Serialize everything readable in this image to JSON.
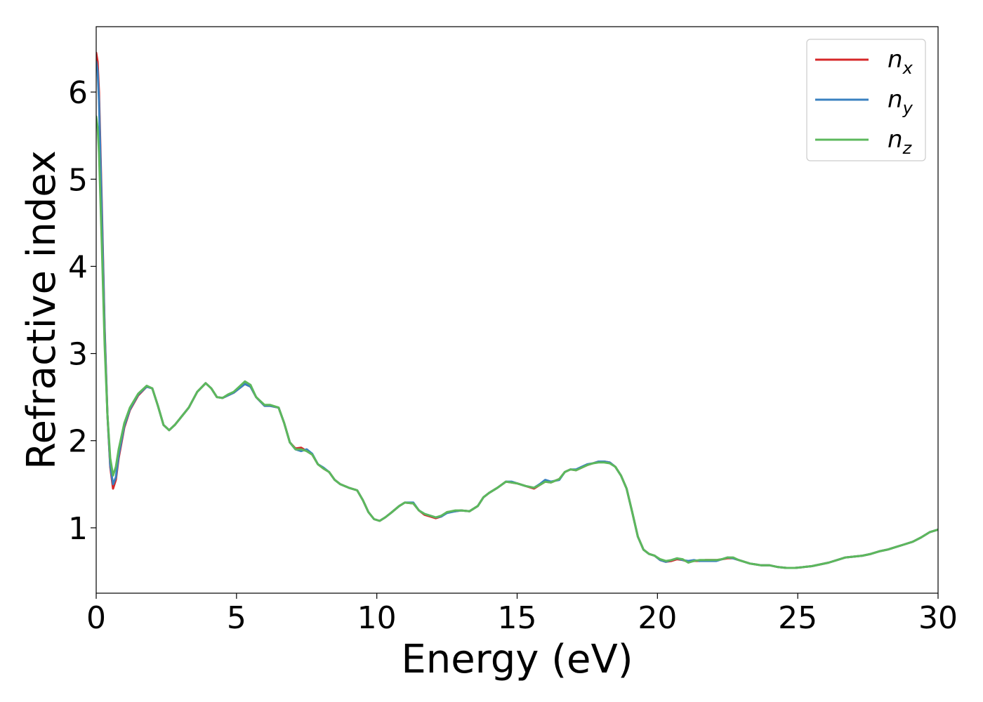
{
  "chart_data": {
    "type": "line",
    "xlabel": "Energy (eV)",
    "ylabel": "Refractive index",
    "xlim": [
      0,
      30
    ],
    "ylim": [
      0.25,
      6.75
    ],
    "xticks": [
      0,
      5,
      10,
      15,
      20,
      25,
      30
    ],
    "yticks": [
      1,
      2,
      3,
      4,
      5,
      6
    ],
    "grid": false,
    "legend_position": "top-right",
    "series": [
      {
        "name": "n",
        "subscript": "x",
        "color": "#d62728",
        "x": [
          0,
          0.05,
          0.1,
          0.2,
          0.3,
          0.4,
          0.5,
          0.6,
          0.7,
          0.8,
          1.0,
          1.2,
          1.5,
          1.8,
          2.0,
          2.2,
          2.4,
          2.6,
          2.8,
          3.0,
          3.3,
          3.6,
          3.9,
          4.1,
          4.3,
          4.5,
          4.7,
          4.9,
          5.1,
          5.3,
          5.5,
          5.7,
          6.0,
          6.2,
          6.5,
          6.7,
          6.9,
          7.1,
          7.3,
          7.5,
          7.7,
          7.9,
          8.1,
          8.3,
          8.5,
          8.7,
          9.0,
          9.3,
          9.5,
          9.7,
          9.9,
          10.1,
          10.3,
          10.5,
          10.8,
          11.0,
          11.3,
          11.5,
          11.7,
          11.9,
          12.1,
          12.3,
          12.5,
          12.8,
          13.0,
          13.3,
          13.6,
          13.8,
          14.0,
          14.3,
          14.6,
          14.8,
          15.0,
          15.3,
          15.6,
          15.8,
          16.0,
          16.2,
          16.5,
          16.7,
          16.9,
          17.1,
          17.3,
          17.5,
          17.7,
          17.9,
          18.1,
          18.3,
          18.5,
          18.7,
          18.9,
          19.1,
          19.3,
          19.5,
          19.7,
          19.9,
          20.1,
          20.3,
          20.5,
          20.7,
          20.9,
          21.1,
          21.3,
          21.5,
          21.7,
          21.9,
          22.1,
          22.3,
          22.5,
          22.7,
          22.9,
          23.1,
          23.3,
          23.5,
          23.7,
          24.0,
          24.3,
          24.6,
          24.9,
          25.2,
          25.5,
          25.8,
          26.1,
          26.4,
          26.7,
          27.0,
          27.3,
          27.6,
          27.9,
          28.2,
          28.5,
          28.8,
          29.1,
          29.4,
          29.7,
          30.0
        ],
        "y": [
          6.45,
          6.35,
          6.0,
          4.7,
          3.3,
          2.3,
          1.7,
          1.45,
          1.55,
          1.8,
          2.15,
          2.35,
          2.52,
          2.62,
          2.6,
          2.4,
          2.18,
          2.12,
          2.18,
          2.26,
          2.38,
          2.56,
          2.66,
          2.6,
          2.5,
          2.49,
          2.52,
          2.55,
          2.6,
          2.65,
          2.62,
          2.5,
          2.4,
          2.4,
          2.38,
          2.2,
          1.98,
          1.91,
          1.92,
          1.88,
          1.84,
          1.73,
          1.68,
          1.64,
          1.55,
          1.5,
          1.46,
          1.43,
          1.32,
          1.18,
          1.1,
          1.08,
          1.12,
          1.17,
          1.25,
          1.29,
          1.28,
          1.2,
          1.15,
          1.13,
          1.11,
          1.13,
          1.18,
          1.19,
          1.2,
          1.19,
          1.25,
          1.35,
          1.4,
          1.46,
          1.53,
          1.52,
          1.51,
          1.48,
          1.45,
          1.49,
          1.53,
          1.52,
          1.56,
          1.64,
          1.67,
          1.66,
          1.69,
          1.72,
          1.74,
          1.76,
          1.76,
          1.75,
          1.7,
          1.6,
          1.45,
          1.18,
          0.9,
          0.75,
          0.7,
          0.68,
          0.63,
          0.61,
          0.62,
          0.64,
          0.63,
          0.61,
          0.62,
          0.62,
          0.63,
          0.63,
          0.63,
          0.64,
          0.65,
          0.65,
          0.63,
          0.61,
          0.59,
          0.58,
          0.57,
          0.57,
          0.55,
          0.54,
          0.54,
          0.55,
          0.56,
          0.58,
          0.6,
          0.63,
          0.66,
          0.67,
          0.68,
          0.7,
          0.73,
          0.75,
          0.78,
          0.81,
          0.84,
          0.89,
          0.95,
          0.98
        ]
      },
      {
        "name": "n",
        "subscript": "y",
        "color": "#3a81c0",
        "x": [
          0,
          0.05,
          0.1,
          0.2,
          0.3,
          0.4,
          0.5,
          0.6,
          0.7,
          0.8,
          1.0,
          1.2,
          1.5,
          1.8,
          2.0,
          2.2,
          2.4,
          2.6,
          2.8,
          3.0,
          3.3,
          3.6,
          3.9,
          4.1,
          4.3,
          4.5,
          4.7,
          4.9,
          5.1,
          5.3,
          5.5,
          5.7,
          6.0,
          6.2,
          6.5,
          6.7,
          6.9,
          7.1,
          7.3,
          7.5,
          7.7,
          7.9,
          8.1,
          8.3,
          8.5,
          8.7,
          9.0,
          9.3,
          9.5,
          9.7,
          9.9,
          10.1,
          10.3,
          10.5,
          10.8,
          11.0,
          11.3,
          11.5,
          11.7,
          11.9,
          12.1,
          12.3,
          12.5,
          12.8,
          13.0,
          13.3,
          13.6,
          13.8,
          14.0,
          14.3,
          14.6,
          14.8,
          15.0,
          15.3,
          15.6,
          15.8,
          16.0,
          16.2,
          16.5,
          16.7,
          16.9,
          17.1,
          17.3,
          17.5,
          17.7,
          17.9,
          18.1,
          18.3,
          18.5,
          18.7,
          18.9,
          19.1,
          19.3,
          19.5,
          19.7,
          19.9,
          20.1,
          20.3,
          20.5,
          20.7,
          20.9,
          21.1,
          21.3,
          21.5,
          21.7,
          21.9,
          22.1,
          22.3,
          22.5,
          22.7,
          22.9,
          23.1,
          23.3,
          23.5,
          23.7,
          24.0,
          24.3,
          24.6,
          24.9,
          25.2,
          25.5,
          25.8,
          26.1,
          26.4,
          26.7,
          27.0,
          27.3,
          27.6,
          27.9,
          28.2,
          28.5,
          28.8,
          29.1,
          29.4,
          29.7,
          30.0
        ],
        "y": [
          6.35,
          6.25,
          5.9,
          4.6,
          3.25,
          2.3,
          1.72,
          1.5,
          1.58,
          1.83,
          2.17,
          2.36,
          2.53,
          2.62,
          2.6,
          2.4,
          2.18,
          2.12,
          2.18,
          2.26,
          2.38,
          2.56,
          2.66,
          2.6,
          2.5,
          2.49,
          2.52,
          2.55,
          2.6,
          2.65,
          2.62,
          2.5,
          2.4,
          2.4,
          2.38,
          2.2,
          1.98,
          1.9,
          1.88,
          1.9,
          1.85,
          1.73,
          1.69,
          1.64,
          1.55,
          1.5,
          1.46,
          1.43,
          1.32,
          1.18,
          1.1,
          1.08,
          1.12,
          1.17,
          1.25,
          1.29,
          1.29,
          1.2,
          1.16,
          1.14,
          1.12,
          1.13,
          1.17,
          1.19,
          1.2,
          1.19,
          1.25,
          1.35,
          1.4,
          1.46,
          1.53,
          1.53,
          1.51,
          1.48,
          1.46,
          1.5,
          1.55,
          1.53,
          1.55,
          1.64,
          1.67,
          1.67,
          1.7,
          1.73,
          1.74,
          1.76,
          1.76,
          1.75,
          1.7,
          1.6,
          1.45,
          1.18,
          0.9,
          0.75,
          0.7,
          0.68,
          0.63,
          0.61,
          0.63,
          0.65,
          0.63,
          0.62,
          0.63,
          0.62,
          0.62,
          0.62,
          0.62,
          0.64,
          0.66,
          0.65,
          0.63,
          0.61,
          0.59,
          0.58,
          0.57,
          0.57,
          0.55,
          0.54,
          0.54,
          0.55,
          0.56,
          0.58,
          0.6,
          0.63,
          0.66,
          0.67,
          0.68,
          0.7,
          0.73,
          0.75,
          0.78,
          0.81,
          0.84,
          0.89,
          0.95,
          0.98
        ]
      },
      {
        "name": "n",
        "subscript": "z",
        "color": "#5cb85c",
        "x": [
          0,
          0.05,
          0.1,
          0.2,
          0.3,
          0.4,
          0.5,
          0.6,
          0.7,
          0.8,
          1.0,
          1.2,
          1.5,
          1.8,
          2.0,
          2.2,
          2.4,
          2.6,
          2.8,
          3.0,
          3.3,
          3.6,
          3.9,
          4.1,
          4.3,
          4.5,
          4.7,
          4.9,
          5.1,
          5.3,
          5.5,
          5.7,
          6.0,
          6.2,
          6.5,
          6.7,
          6.9,
          7.1,
          7.3,
          7.5,
          7.7,
          7.9,
          8.1,
          8.3,
          8.5,
          8.7,
          9.0,
          9.3,
          9.5,
          9.7,
          9.9,
          10.1,
          10.3,
          10.5,
          10.8,
          11.0,
          11.3,
          11.5,
          11.7,
          11.9,
          12.1,
          12.3,
          12.5,
          12.8,
          13.0,
          13.3,
          13.6,
          13.8,
          14.0,
          14.3,
          14.6,
          14.8,
          15.0,
          15.3,
          15.6,
          15.8,
          16.0,
          16.2,
          16.5,
          16.7,
          16.9,
          17.1,
          17.3,
          17.5,
          17.7,
          17.9,
          18.1,
          18.3,
          18.5,
          18.7,
          18.9,
          19.1,
          19.3,
          19.5,
          19.7,
          19.9,
          20.1,
          20.3,
          20.5,
          20.7,
          20.9,
          21.1,
          21.3,
          21.5,
          21.7,
          21.9,
          22.1,
          22.3,
          22.5,
          22.7,
          22.9,
          23.1,
          23.3,
          23.5,
          23.7,
          24.0,
          24.3,
          24.6,
          24.9,
          25.2,
          25.5,
          25.8,
          26.1,
          26.4,
          26.7,
          27.0,
          27.3,
          27.6,
          27.9,
          28.2,
          28.5,
          28.8,
          29.1,
          29.4,
          29.7,
          30.0
        ],
        "y": [
          5.72,
          5.6,
          5.3,
          4.25,
          3.1,
          2.3,
          1.8,
          1.6,
          1.7,
          1.9,
          2.2,
          2.38,
          2.54,
          2.63,
          2.6,
          2.4,
          2.18,
          2.12,
          2.18,
          2.26,
          2.38,
          2.56,
          2.66,
          2.6,
          2.5,
          2.49,
          2.53,
          2.56,
          2.62,
          2.68,
          2.64,
          2.5,
          2.41,
          2.41,
          2.38,
          2.2,
          1.98,
          1.9,
          1.9,
          1.88,
          1.84,
          1.73,
          1.68,
          1.64,
          1.55,
          1.5,
          1.46,
          1.43,
          1.32,
          1.18,
          1.1,
          1.08,
          1.12,
          1.17,
          1.25,
          1.29,
          1.28,
          1.2,
          1.16,
          1.14,
          1.12,
          1.14,
          1.18,
          1.2,
          1.2,
          1.19,
          1.25,
          1.35,
          1.4,
          1.46,
          1.53,
          1.52,
          1.51,
          1.48,
          1.46,
          1.49,
          1.53,
          1.52,
          1.56,
          1.64,
          1.67,
          1.66,
          1.69,
          1.72,
          1.74,
          1.75,
          1.75,
          1.74,
          1.7,
          1.6,
          1.45,
          1.18,
          0.9,
          0.75,
          0.7,
          0.68,
          0.64,
          0.62,
          0.63,
          0.65,
          0.64,
          0.6,
          0.62,
          0.63,
          0.63,
          0.63,
          0.63,
          0.64,
          0.66,
          0.66,
          0.63,
          0.61,
          0.59,
          0.58,
          0.57,
          0.57,
          0.55,
          0.54,
          0.54,
          0.55,
          0.56,
          0.58,
          0.6,
          0.63,
          0.66,
          0.67,
          0.68,
          0.7,
          0.73,
          0.75,
          0.78,
          0.81,
          0.84,
          0.89,
          0.95,
          0.98
        ]
      }
    ]
  }
}
